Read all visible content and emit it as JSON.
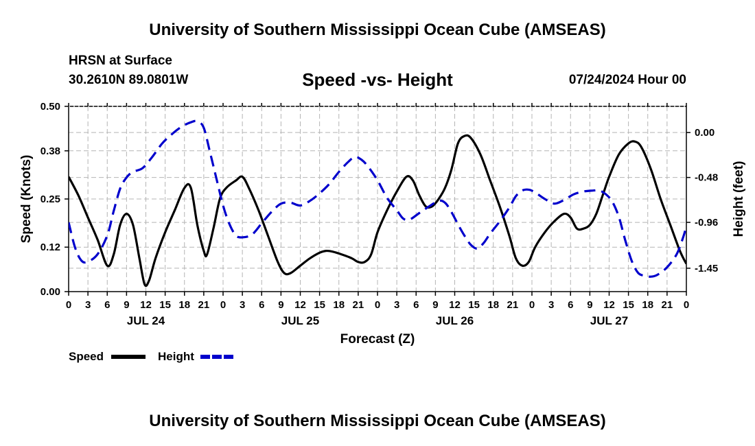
{
  "page": {
    "top_title": "University of Southern Mississippi Ocean Cube (AMSEAS)",
    "bottom_title": "University of Southern Mississippi Ocean Cube (AMSEAS)",
    "station": "HRSN at Surface",
    "coords": "30.2610N  89.0801W",
    "subtitle": "Speed -vs- Height",
    "datetime": "07/24/2024 Hour 00"
  },
  "chart_data": {
    "type": "line",
    "title": "Speed -vs- Height",
    "xlabel": "Forecast (Z)",
    "ylabel": "Speed (Knots)",
    "y2label": "Height (feet)",
    "xlim": [
      0,
      96
    ],
    "ylim": [
      0,
      0.5
    ],
    "y2lim": [
      -1.7,
      0.28
    ],
    "xticks": [
      0,
      3,
      6,
      9,
      12,
      15,
      18,
      21,
      24,
      27,
      30,
      33,
      36,
      39,
      42,
      45,
      48,
      51,
      54,
      57,
      60,
      63,
      66,
      69,
      72,
      75,
      78,
      81,
      84,
      87,
      90,
      93,
      96
    ],
    "xtick_labels": [
      "0",
      "3",
      "6",
      "9",
      "12",
      "15",
      "18",
      "21",
      "0",
      "3",
      "6",
      "9",
      "12",
      "15",
      "18",
      "21",
      "0",
      "3",
      "6",
      "9",
      "12",
      "15",
      "18",
      "21",
      "0",
      "3",
      "6",
      "9",
      "12",
      "15",
      "18",
      "21",
      "0"
    ],
    "day_labels": [
      {
        "x": 12,
        "label": "JUL 24"
      },
      {
        "x": 36,
        "label": "JUL 25"
      },
      {
        "x": 60,
        "label": "JUL 26"
      },
      {
        "x": 84,
        "label": "JUL 27"
      }
    ],
    "yticks": [
      0.0,
      0.12,
      0.25,
      0.38,
      0.5
    ],
    "ytick_labels": [
      "0.00",
      "0.12",
      "0.25",
      "0.38",
      "0.50"
    ],
    "y2ticks": [
      0.0,
      -0.48,
      -0.96,
      -1.45
    ],
    "y2tick_labels": [
      "0.00",
      "-0.48",
      "-0.96",
      "-1.45"
    ],
    "grid": true,
    "legend": [
      {
        "label": "Speed",
        "color": "#000000",
        "style": "solid"
      },
      {
        "label": "Height",
        "color": "#0000cc",
        "style": "dashed"
      }
    ],
    "series": [
      {
        "name": "Speed",
        "axis": "left",
        "color": "#000000",
        "style": "solid",
        "points": [
          [
            0,
            0.31
          ],
          [
            1.5,
            0.26
          ],
          [
            3,
            0.2
          ],
          [
            4.5,
            0.14
          ],
          [
            6,
            0.07
          ],
          [
            7,
            0.1
          ],
          [
            8,
            0.18
          ],
          [
            9,
            0.21
          ],
          [
            10,
            0.18
          ],
          [
            11,
            0.09
          ],
          [
            11.8,
            0.02
          ],
          [
            12.5,
            0.03
          ],
          [
            13.5,
            0.09
          ],
          [
            15,
            0.16
          ],
          [
            16.5,
            0.22
          ],
          [
            18,
            0.28
          ],
          [
            19,
            0.28
          ],
          [
            20,
            0.18
          ],
          [
            21,
            0.11
          ],
          [
            21.5,
            0.1
          ],
          [
            22.5,
            0.17
          ],
          [
            23.5,
            0.25
          ],
          [
            24.5,
            0.28
          ],
          [
            26,
            0.3
          ],
          [
            27,
            0.31
          ],
          [
            28,
            0.28
          ],
          [
            29.5,
            0.22
          ],
          [
            31,
            0.15
          ],
          [
            32.5,
            0.08
          ],
          [
            33.5,
            0.05
          ],
          [
            34.5,
            0.05
          ],
          [
            36,
            0.07
          ],
          [
            37.5,
            0.09
          ],
          [
            39,
            0.105
          ],
          [
            40,
            0.11
          ],
          [
            41,
            0.108
          ],
          [
            42.5,
            0.1
          ],
          [
            44,
            0.09
          ],
          [
            45,
            0.08
          ],
          [
            46,
            0.08
          ],
          [
            47,
            0.1
          ],
          [
            48,
            0.16
          ],
          [
            49.5,
            0.22
          ],
          [
            51,
            0.27
          ],
          [
            52.5,
            0.31
          ],
          [
            53.5,
            0.3
          ],
          [
            54.5,
            0.26
          ],
          [
            55.5,
            0.23
          ],
          [
            56.5,
            0.23
          ],
          [
            57.5,
            0.25
          ],
          [
            58.5,
            0.28
          ],
          [
            59.5,
            0.33
          ],
          [
            60.5,
            0.4
          ],
          [
            61.5,
            0.42
          ],
          [
            62.5,
            0.415
          ],
          [
            64,
            0.37
          ],
          [
            65.5,
            0.3
          ],
          [
            67,
            0.23
          ],
          [
            68.5,
            0.15
          ],
          [
            69.5,
            0.09
          ],
          [
            70.5,
            0.07
          ],
          [
            71.5,
            0.08
          ],
          [
            72.5,
            0.12
          ],
          [
            74,
            0.16
          ],
          [
            75.5,
            0.19
          ],
          [
            77,
            0.21
          ],
          [
            78,
            0.2
          ],
          [
            79,
            0.17
          ],
          [
            80,
            0.17
          ],
          [
            81,
            0.18
          ],
          [
            82,
            0.21
          ],
          [
            83,
            0.26
          ],
          [
            84,
            0.31
          ],
          [
            85.5,
            0.37
          ],
          [
            87,
            0.4
          ],
          [
            88,
            0.405
          ],
          [
            89,
            0.39
          ],
          [
            90.5,
            0.33
          ],
          [
            92,
            0.25
          ],
          [
            93.5,
            0.18
          ],
          [
            95,
            0.11
          ],
          [
            96,
            0.075
          ]
        ]
      },
      {
        "name": "Height",
        "axis": "right",
        "color": "#0000cc",
        "style": "dashed",
        "points": [
          [
            0,
            -0.96
          ],
          [
            1,
            -1.23
          ],
          [
            2,
            -1.37
          ],
          [
            3,
            -1.38
          ],
          [
            4.5,
            -1.3
          ],
          [
            6,
            -1.1
          ],
          [
            7,
            -0.84
          ],
          [
            8,
            -0.6
          ],
          [
            9,
            -0.48
          ],
          [
            10,
            -0.42
          ],
          [
            11.5,
            -0.38
          ],
          [
            13,
            -0.26
          ],
          [
            14.5,
            -0.12
          ],
          [
            16,
            -0.02
          ],
          [
            17.5,
            0.06
          ],
          [
            19,
            0.11
          ],
          [
            20,
            0.12
          ],
          [
            21,
            0.05
          ],
          [
            22,
            -0.22
          ],
          [
            23,
            -0.5
          ],
          [
            24,
            -0.78
          ],
          [
            25,
            -0.98
          ],
          [
            26,
            -1.1
          ],
          [
            27,
            -1.12
          ],
          [
            28.5,
            -1.09
          ],
          [
            30,
            -0.97
          ],
          [
            31.5,
            -0.85
          ],
          [
            33,
            -0.76
          ],
          [
            34.5,
            -0.75
          ],
          [
            36,
            -0.78
          ],
          [
            37.5,
            -0.73
          ],
          [
            39,
            -0.65
          ],
          [
            40.5,
            -0.55
          ],
          [
            42,
            -0.42
          ],
          [
            43.5,
            -0.31
          ],
          [
            44.5,
            -0.26
          ],
          [
            45.5,
            -0.29
          ],
          [
            46.5,
            -0.36
          ],
          [
            48,
            -0.51
          ],
          [
            49.5,
            -0.7
          ],
          [
            51,
            -0.83
          ],
          [
            52,
            -0.92
          ],
          [
            53,
            -0.93
          ],
          [
            54.5,
            -0.86
          ],
          [
            56,
            -0.79
          ],
          [
            57.5,
            -0.73
          ],
          [
            58.5,
            -0.75
          ],
          [
            59.5,
            -0.85
          ],
          [
            60.5,
            -0.98
          ],
          [
            61.5,
            -1.1
          ],
          [
            62.5,
            -1.2
          ],
          [
            63.5,
            -1.24
          ],
          [
            64.5,
            -1.18
          ],
          [
            65.5,
            -1.08
          ],
          [
            67,
            -0.95
          ],
          [
            68.5,
            -0.8
          ],
          [
            69.5,
            -0.68
          ],
          [
            70.5,
            -0.62
          ],
          [
            71.5,
            -0.61
          ],
          [
            72.5,
            -0.64
          ],
          [
            74,
            -0.71
          ],
          [
            75.5,
            -0.76
          ],
          [
            77,
            -0.72
          ],
          [
            78.5,
            -0.66
          ],
          [
            80,
            -0.63
          ],
          [
            81.5,
            -0.62
          ],
          [
            82.5,
            -0.62
          ],
          [
            83.5,
            -0.66
          ],
          [
            84.5,
            -0.74
          ],
          [
            85.5,
            -0.9
          ],
          [
            86.5,
            -1.15
          ],
          [
            87.5,
            -1.37
          ],
          [
            88.5,
            -1.5
          ],
          [
            89.5,
            -1.53
          ],
          [
            90.5,
            -1.54
          ],
          [
            91.5,
            -1.52
          ],
          [
            93,
            -1.44
          ],
          [
            94.5,
            -1.3
          ],
          [
            95.5,
            -1.12
          ],
          [
            96,
            -1.0
          ]
        ]
      }
    ]
  }
}
